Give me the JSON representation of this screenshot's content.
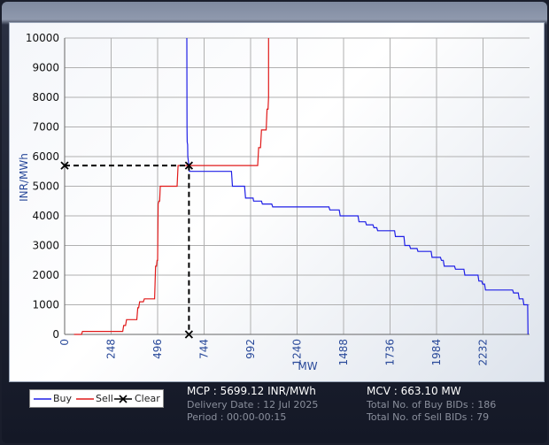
{
  "chart_data": {
    "type": "line",
    "xlabel": "MW",
    "ylabel": "INR/MWh",
    "xlim": [
      0,
      2480
    ],
    "ylim": [
      0,
      10000
    ],
    "x_ticks": [
      0,
      248,
      496,
      744,
      992,
      1240,
      1488,
      1736,
      1984,
      2232
    ],
    "y_ticks": [
      0,
      1000,
      2000,
      3000,
      4000,
      5000,
      6000,
      7000,
      8000,
      9000,
      10000
    ],
    "grid": true,
    "legend_position": "bottom-left",
    "series": [
      {
        "name": "Buy",
        "color": "#1f1fe6",
        "points": [
          [
            652,
            10000
          ],
          [
            653,
            7000
          ],
          [
            654,
            6500
          ],
          [
            656,
            6400
          ],
          [
            657,
            6000
          ],
          [
            661,
            5800
          ],
          [
            663,
            5700
          ],
          [
            665,
            5500
          ],
          [
            890,
            5500
          ],
          [
            895,
            5000
          ],
          [
            960,
            5000
          ],
          [
            965,
            4600
          ],
          [
            1005,
            4600
          ],
          [
            1008,
            4500
          ],
          [
            1050,
            4500
          ],
          [
            1055,
            4400
          ],
          [
            1105,
            4400
          ],
          [
            1110,
            4300
          ],
          [
            1410,
            4300
          ],
          [
            1415,
            4200
          ],
          [
            1465,
            4200
          ],
          [
            1470,
            4000
          ],
          [
            1565,
            4000
          ],
          [
            1570,
            3800
          ],
          [
            1605,
            3800
          ],
          [
            1610,
            3700
          ],
          [
            1645,
            3700
          ],
          [
            1650,
            3600
          ],
          [
            1665,
            3600
          ],
          [
            1670,
            3500
          ],
          [
            1760,
            3500
          ],
          [
            1765,
            3300
          ],
          [
            1810,
            3300
          ],
          [
            1815,
            3000
          ],
          [
            1840,
            3000
          ],
          [
            1845,
            2900
          ],
          [
            1880,
            2900
          ],
          [
            1885,
            2800
          ],
          [
            1955,
            2800
          ],
          [
            1960,
            2600
          ],
          [
            2005,
            2600
          ],
          [
            2010,
            2500
          ],
          [
            2020,
            2500
          ],
          [
            2025,
            2300
          ],
          [
            2080,
            2300
          ],
          [
            2085,
            2200
          ],
          [
            2130,
            2200
          ],
          [
            2135,
            2000
          ],
          [
            2205,
            2000
          ],
          [
            2210,
            1800
          ],
          [
            2225,
            1800
          ],
          [
            2230,
            1700
          ],
          [
            2240,
            1700
          ],
          [
            2245,
            1500
          ],
          [
            2390,
            1500
          ],
          [
            2395,
            1400
          ],
          [
            2420,
            1400
          ],
          [
            2425,
            1200
          ],
          [
            2445,
            1200
          ],
          [
            2450,
            1000
          ],
          [
            2470,
            1000
          ],
          [
            2472,
            0
          ]
        ]
      },
      {
        "name": "Sell",
        "color": "#e01a1a",
        "points": [
          [
            50,
            0
          ],
          [
            90,
            0
          ],
          [
            95,
            100
          ],
          [
            310,
            100
          ],
          [
            315,
            300
          ],
          [
            325,
            300
          ],
          [
            330,
            500
          ],
          [
            385,
            500
          ],
          [
            390,
            900
          ],
          [
            395,
            900
          ],
          [
            400,
            1100
          ],
          [
            420,
            1100
          ],
          [
            425,
            1200
          ],
          [
            480,
            1200
          ],
          [
            485,
            2300
          ],
          [
            490,
            2300
          ],
          [
            493,
            2500
          ],
          [
            496,
            2500
          ],
          [
            499,
            4400
          ],
          [
            503,
            4500
          ],
          [
            507,
            4500
          ],
          [
            510,
            5000
          ],
          [
            600,
            5000
          ],
          [
            605,
            5700
          ],
          [
            1030,
            5700
          ],
          [
            1035,
            6300
          ],
          [
            1045,
            6300
          ],
          [
            1050,
            6900
          ],
          [
            1075,
            6900
          ],
          [
            1080,
            7600
          ],
          [
            1085,
            7600
          ],
          [
            1088,
            8000
          ],
          [
            1088,
            10000
          ]
        ]
      },
      {
        "name": "Clear",
        "color": "#000000",
        "points": [
          [
            0,
            5699.12
          ],
          [
            663.1,
            5699.12
          ],
          [
            663.1,
            0
          ]
        ]
      }
    ]
  },
  "summary": {
    "mcp": "MCP : 5699.12 INR/MWh",
    "delivery_date": "Delivery Date : 12 Jul 2025",
    "period": "Period :  00:00-00:15",
    "mcv": "MCV : 663.10 MW",
    "buy_bids": "Total No. of Buy BIDs : 186",
    "sell_bids": "Total No. of Sell BIDs : 79"
  }
}
